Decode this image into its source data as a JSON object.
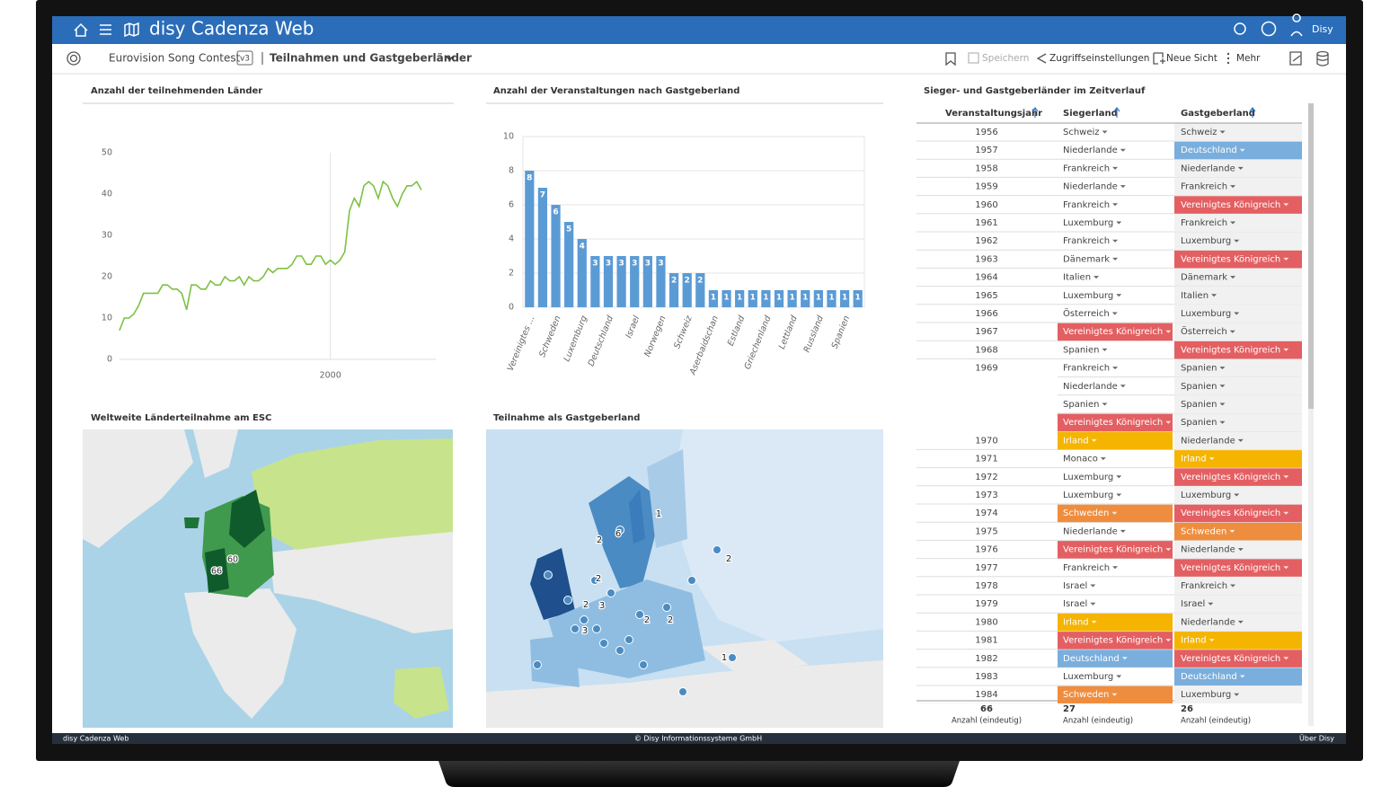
{
  "header": {
    "app_title": "disy Cadenza Web",
    "user": "Disy"
  },
  "toolbar": {
    "breadcrumb": "Eurovision Song Contest",
    "version": "v3",
    "view": "Teilnahmen und Gastgeberländer",
    "actions": [
      "Speichern",
      "Zugriffseinstellungen",
      "Neue Sicht",
      "Mehr"
    ]
  },
  "chart_data": [
    {
      "type": "line",
      "title": "Anzahl der teilnehmenden Länder",
      "color": "#7dc142",
      "grid": "x",
      "x": [
        1956,
        1957,
        1958,
        1959,
        1960,
        1961,
        1962,
        1963,
        1964,
        1965,
        1966,
        1967,
        1968,
        1969,
        1970,
        1971,
        1972,
        1973,
        1974,
        1975,
        1976,
        1977,
        1978,
        1979,
        1980,
        1981,
        1982,
        1983,
        1984,
        1985,
        1986,
        1987,
        1988,
        1989,
        1990,
        1991,
        1992,
        1993,
        1994,
        1995,
        1996,
        1997,
        1998,
        1999,
        2000,
        2001,
        2002,
        2003,
        2004,
        2005,
        2006,
        2007,
        2008,
        2009,
        2010,
        2011,
        2012,
        2013,
        2014,
        2015,
        2016,
        2017,
        2018,
        2019
      ],
      "values": [
        7,
        10,
        10,
        11,
        13,
        16,
        16,
        16,
        16,
        18,
        18,
        17,
        17,
        16,
        12,
        18,
        18,
        17,
        17,
        19,
        18,
        18,
        20,
        19,
        19,
        20,
        18,
        20,
        19,
        19,
        20,
        22,
        21,
        22,
        22,
        22,
        23,
        25,
        25,
        23,
        23,
        25,
        25,
        23,
        24,
        23,
        24,
        26,
        36,
        39,
        37,
        42,
        43,
        42,
        39,
        43,
        42,
        39,
        37,
        40,
        42,
        42,
        43,
        41
      ],
      "xlim": [
        1956,
        2022
      ],
      "xticks": [
        2000
      ],
      "ylim": [
        0,
        50
      ],
      "yticks": [
        0,
        10,
        20,
        30,
        40,
        50
      ]
    },
    {
      "type": "bar",
      "title": "Anzahl der Veranstaltungen nach Gastgeberland",
      "color": "#5b9bd5",
      "grid": true,
      "categories": [
        "Vereinigtes ...",
        null,
        "Schweden",
        null,
        "Luxemburg",
        null,
        "Deutschland",
        null,
        "Israel",
        null,
        "Norwegen",
        null,
        "Schweiz",
        null,
        "Aserbaidschan",
        null,
        "Estland",
        null,
        "Griechenland",
        null,
        "Lettland",
        null,
        "Russland",
        null,
        "Spanien",
        null
      ],
      "values": [
        8,
        7,
        6,
        5,
        4,
        3,
        3,
        3,
        3,
        3,
        3,
        2,
        2,
        2,
        1,
        1,
        1,
        1,
        1,
        1,
        1,
        1,
        1,
        1,
        1,
        1
      ],
      "ylim": [
        0,
        10
      ],
      "yticks": [
        0,
        2,
        4,
        6,
        8,
        10
      ]
    }
  ],
  "maps": [
    {
      "title": "Weltweite Länderteilnahme am ESC",
      "labels": [
        "66",
        "60"
      ]
    },
    {
      "title": "Teilnahme als Gastgeberland",
      "labels": [
        "1",
        "6",
        "2",
        "2",
        "2",
        "3",
        "3",
        "2",
        "2",
        "1",
        "2"
      ]
    }
  ],
  "table": {
    "title": "Sieger- und Gastgeberländer im Zeitverlauf",
    "columns": [
      "Veranstaltungsjahr",
      "Siegerland",
      "Gastgeberland"
    ],
    "highlight_colors": {
      "Vereinigtes Königreich": "#e35f62",
      "Irland": "#f5b400",
      "Schweden": "#ef8d3f",
      "Deutschland": "#7aaedc"
    },
    "rows": [
      [
        1956,
        "Schweiz",
        "Schweiz"
      ],
      [
        1957,
        "Niederlande",
        "Deutschland"
      ],
      [
        1958,
        "Frankreich",
        "Niederlande"
      ],
      [
        1959,
        "Niederlande",
        "Frankreich"
      ],
      [
        1960,
        "Frankreich",
        "Vereinigtes Königreich"
      ],
      [
        1961,
        "Luxemburg",
        "Frankreich"
      ],
      [
        1962,
        "Frankreich",
        "Luxemburg"
      ],
      [
        1963,
        "Dänemark",
        "Vereinigtes Königreich"
      ],
      [
        1964,
        "Italien",
        "Dänemark"
      ],
      [
        1965,
        "Luxemburg",
        "Italien"
      ],
      [
        1966,
        "Österreich",
        "Luxemburg"
      ],
      [
        1967,
        "Vereinigtes Königreich",
        "Österreich"
      ],
      [
        1968,
        "Spanien",
        "Vereinigtes Königreich"
      ],
      [
        1969,
        "Frankreich",
        "Spanien"
      ],
      [
        null,
        "Niederlande",
        "Spanien"
      ],
      [
        null,
        "Spanien",
        "Spanien"
      ],
      [
        null,
        "Vereinigtes Königreich",
        "Spanien"
      ],
      [
        1970,
        "Irland",
        "Niederlande"
      ],
      [
        1971,
        "Monaco",
        "Irland"
      ],
      [
        1972,
        "Luxemburg",
        "Vereinigtes Königreich"
      ],
      [
        1973,
        "Luxemburg",
        "Luxemburg"
      ],
      [
        1974,
        "Schweden",
        "Vereinigtes Königreich"
      ],
      [
        1975,
        "Niederlande",
        "Schweden"
      ],
      [
        1976,
        "Vereinigtes Königreich",
        "Niederlande"
      ],
      [
        1977,
        "Frankreich",
        "Vereinigtes Königreich"
      ],
      [
        1978,
        "Israel",
        "Frankreich"
      ],
      [
        1979,
        "Israel",
        "Israel"
      ],
      [
        1980,
        "Irland",
        "Niederlande"
      ],
      [
        1981,
        "Vereinigtes Königreich",
        "Irland"
      ],
      [
        1982,
        "Deutschland",
        "Vereinigtes Königreich"
      ],
      [
        1983,
        "Luxemburg",
        "Deutschland"
      ],
      [
        1984,
        "Schweden",
        "Luxemburg"
      ]
    ],
    "footer_values": [
      66,
      27,
      26
    ],
    "footer_labels": [
      "Anzahl (eindeutig)",
      "Anzahl (eindeutig)",
      "Anzahl (eindeutig)"
    ]
  },
  "footer": {
    "left": "disy Cadenza Web",
    "center": "© Disy Informationssysteme GmbH",
    "right": "Über Disy"
  }
}
